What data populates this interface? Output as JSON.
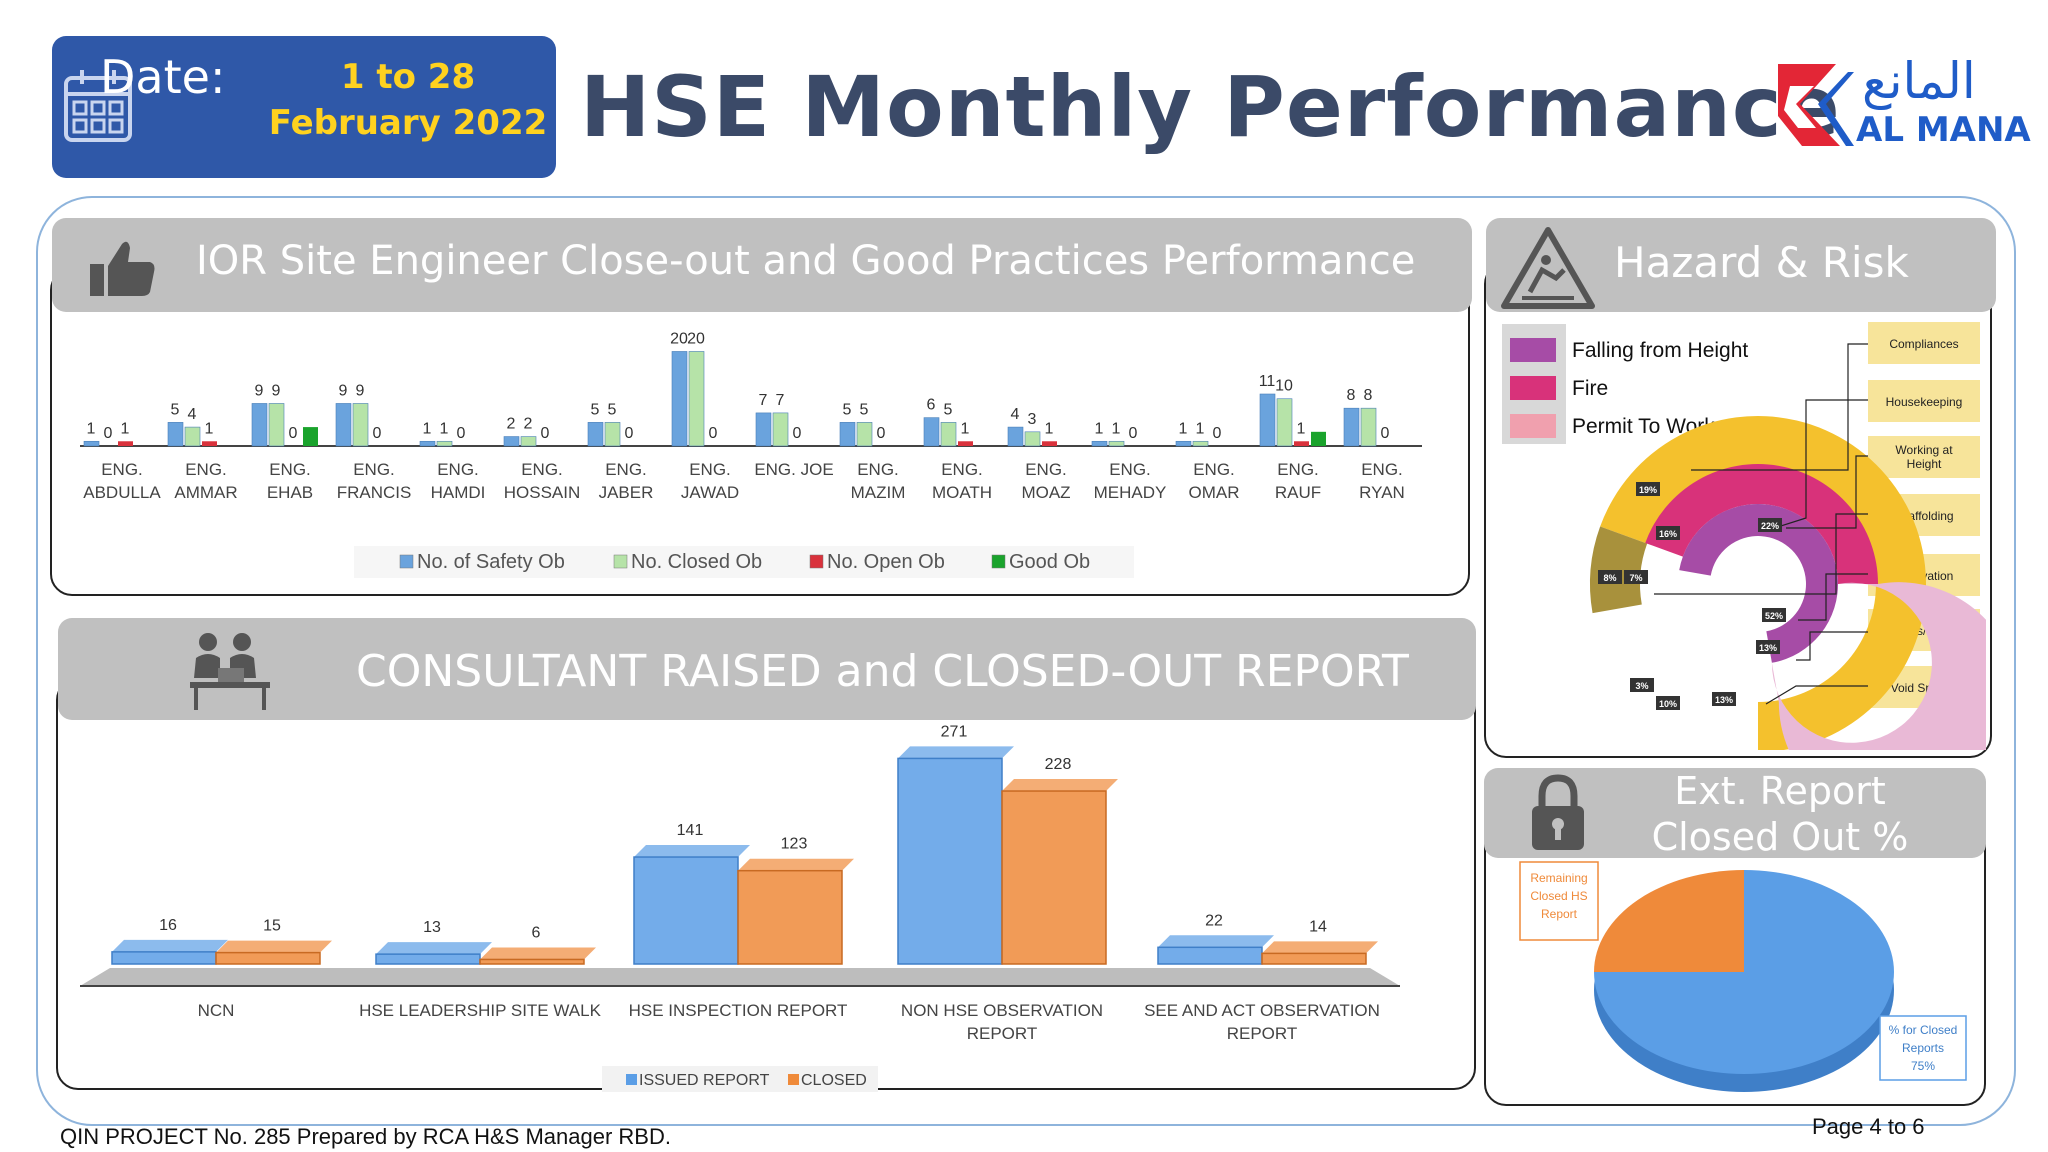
{
  "header": {
    "date_label": "Date:",
    "date_value": "1 to 28 February 2022",
    "title": "HSE Monthly Performance",
    "logo_text": "AL MANA",
    "logo_arabic": "المانع"
  },
  "colors": {
    "date_box": "#2f58a8",
    "date_text": "#ffd21f",
    "title": "#3b4a68",
    "safety_ob": "#6aa3dd",
    "closed_ob": "#b6e3a8",
    "open_ob": "#d9323c",
    "good_ob": "#1aa32c",
    "issued": "#5b9ee6",
    "closed": "#ef8a3a"
  },
  "ior_section": {
    "title": "IOR Site Engineer Close-out and Good Practices Performance",
    "icon": "thumbs-up-icon",
    "chart_data": {
      "type": "bar",
      "categories": [
        "ENG. ABDULLA",
        "ENG. AMMAR",
        "ENG. EHAB",
        "ENG. FRANCIS",
        "ENG. HAMDI",
        "ENG. HOSSAIN",
        "ENG. JABER",
        "ENG. JAWAD",
        "ENG. JOE",
        "ENG. MAZIM",
        "ENG. MOATH",
        "ENG. MOAZ",
        "ENG. MEHADY",
        "ENG. OMAR",
        "ENG. RAUF",
        "ENG. RYAN"
      ],
      "category_lines": [
        [
          "ENG.",
          "ABDULLA"
        ],
        [
          "ENG.",
          "AMMAR"
        ],
        [
          "ENG.",
          "EHAB"
        ],
        [
          "ENG.",
          "FRANCIS"
        ],
        [
          "ENG.",
          "HAMDI"
        ],
        [
          "ENG.",
          "HOSSAIN"
        ],
        [
          "ENG.",
          "JABER"
        ],
        [
          "ENG.",
          "JAWAD"
        ],
        [
          "ENG. JOE",
          ""
        ],
        [
          "ENG.",
          "MAZIM"
        ],
        [
          "ENG.",
          "MOATH"
        ],
        [
          "ENG.",
          "MOAZ"
        ],
        [
          "ENG.",
          "MEHADY"
        ],
        [
          "ENG.",
          "OMAR"
        ],
        [
          "ENG.",
          "RAUF"
        ],
        [
          "ENG.",
          "RYAN"
        ]
      ],
      "series": [
        {
          "name": "No. of Safety Ob",
          "values": [
            1,
            5,
            9,
            9,
            1,
            2,
            5,
            20,
            7,
            5,
            6,
            4,
            1,
            1,
            11,
            8
          ]
        },
        {
          "name": "No. Closed Ob",
          "values": [
            0,
            4,
            9,
            9,
            1,
            2,
            5,
            20,
            7,
            5,
            5,
            3,
            1,
            1,
            10,
            8
          ]
        },
        {
          "name": "No. Open Ob",
          "values": [
            1,
            1,
            0,
            0,
            0,
            0,
            0,
            0,
            0,
            0,
            1,
            1,
            0,
            0,
            1,
            0
          ]
        },
        {
          "name": "Good Ob",
          "values": [
            0,
            0,
            4,
            0,
            0,
            0,
            0,
            0,
            0,
            0,
            0,
            0,
            0,
            0,
            3,
            0
          ]
        }
      ],
      "labels": [
        [
          "1",
          "0",
          "1",
          ""
        ],
        [
          "5",
          "4",
          "1",
          ""
        ],
        [
          "9",
          "9",
          "0",
          ""
        ],
        [
          "9",
          "9",
          "0",
          ""
        ],
        [
          "1",
          "1",
          "0",
          ""
        ],
        [
          "2",
          "2",
          "0",
          ""
        ],
        [
          "5",
          "5",
          "0",
          ""
        ],
        [
          "20",
          "20",
          "0",
          ""
        ],
        [
          "7",
          "7",
          "0",
          ""
        ],
        [
          "5",
          "5",
          "0",
          ""
        ],
        [
          "6",
          "5",
          "1",
          ""
        ],
        [
          "4",
          "3",
          "1",
          ""
        ],
        [
          "1",
          "1",
          "0",
          ""
        ],
        [
          "1",
          "1",
          "0",
          ""
        ],
        [
          "11",
          "10",
          "1",
          ""
        ],
        [
          "8",
          "8",
          "0",
          ""
        ]
      ],
      "ylim": [
        0,
        22
      ],
      "legend": "bottom"
    }
  },
  "consultant_section": {
    "title": "CONSULTANT RAISED and CLOSED-OUT REPORT",
    "icon": "meeting-people-icon",
    "chart_data": {
      "type": "bar",
      "categories": [
        "NCN",
        "HSE LEADERSHIP SITE WALK",
        "HSE INSPECTION REPORT",
        "NON HSE OBSERVATION REPORT",
        "SEE AND ACT OBSERVATION REPORT"
      ],
      "category_lines": [
        [
          "NCN"
        ],
        [
          "HSE LEADERSHIP SITE WALK"
        ],
        [
          "HSE INSPECTION REPORT"
        ],
        [
          "NON HSE OBSERVATION",
          "REPORT"
        ],
        [
          "SEE AND ACT OBSERVATION",
          "REPORT"
        ]
      ],
      "series": [
        {
          "name": "ISSUED REPORT",
          "values": [
            16,
            13,
            141,
            271,
            22
          ]
        },
        {
          "name": "CLOSED",
          "values": [
            15,
            6,
            123,
            228,
            14
          ]
        }
      ],
      "ylim": [
        0,
        290
      ],
      "legend": "bottom"
    }
  },
  "hazard_section": {
    "title": "Hazard & Risk",
    "icon": "slip-warning-icon",
    "legend": [
      {
        "label": "Falling from Height",
        "color": "#a64ca6"
      },
      {
        "label": "Fire",
        "color": "#d8327a"
      },
      {
        "label": "Permit To Work",
        "color": "#f0a0ae"
      }
    ],
    "categories": [
      "Compliances",
      "Housekeeping",
      "Working at Height",
      "Scaffolding",
      "Excavation",
      "Access/Egress",
      "Void Spaces"
    ],
    "percent_tags": [
      "19%",
      "16%",
      "22%",
      "8%",
      "7%",
      "52%",
      "13%",
      "3%",
      "10%",
      "13%"
    ]
  },
  "ext_report_section": {
    "title": "Ext. Report Closed Out %",
    "icon": "padlock-icon",
    "chart_data": {
      "type": "pie",
      "slices": [
        {
          "label": "% for Closed Reports",
          "value": 75,
          "display": "75%",
          "color": "#5b9ee6"
        },
        {
          "label": "Remaining Closed HS Report",
          "value": 25,
          "display": "",
          "color": "#ef8a3a"
        }
      ]
    },
    "label_closed": [
      "% for Closed",
      "Reports",
      "75%"
    ],
    "label_remaining": [
      "Remaining",
      "Closed HS",
      "Report"
    ]
  },
  "footer": {
    "left": "QIN PROJECT No. 285 Prepared by RCA H&S Manager RBD.",
    "right": "Page 4 to 6"
  }
}
